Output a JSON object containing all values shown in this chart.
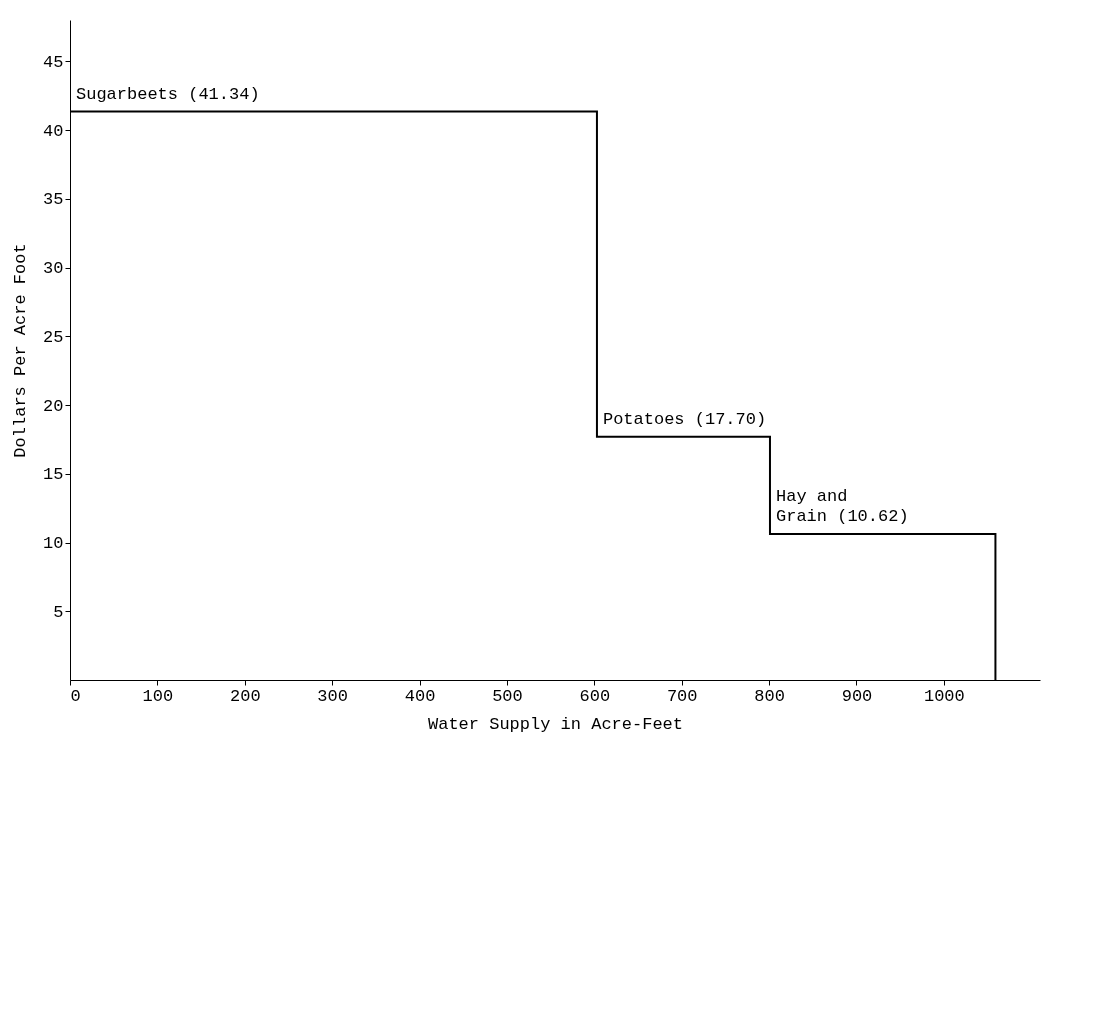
{
  "chart_data": {
    "type": "step",
    "xlabel": "Water Supply in Acre-Feet",
    "ylabel": "Dollars Per Acre Foot",
    "x": [
      0,
      603,
      801,
      1059
    ],
    "values": [
      41.34,
      17.7,
      10.62,
      0
    ],
    "value_labels": [
      "Sugarbeets (41.34)",
      "Potatoes (17.70)",
      "Hay and\nGrain (10.62)",
      null
    ],
    "color": "#000000",
    "line_style": "solid",
    "marker": "none",
    "grid": false,
    "xlim": [
      0,
      1110
    ],
    "xticks": [
      0,
      100,
      200,
      300,
      400,
      500,
      600,
      700,
      800,
      900,
      1000
    ],
    "ylim": [
      0,
      48
    ],
    "yticks": [
      5,
      10,
      15,
      20,
      25,
      30,
      35,
      40,
      45
    ]
  }
}
